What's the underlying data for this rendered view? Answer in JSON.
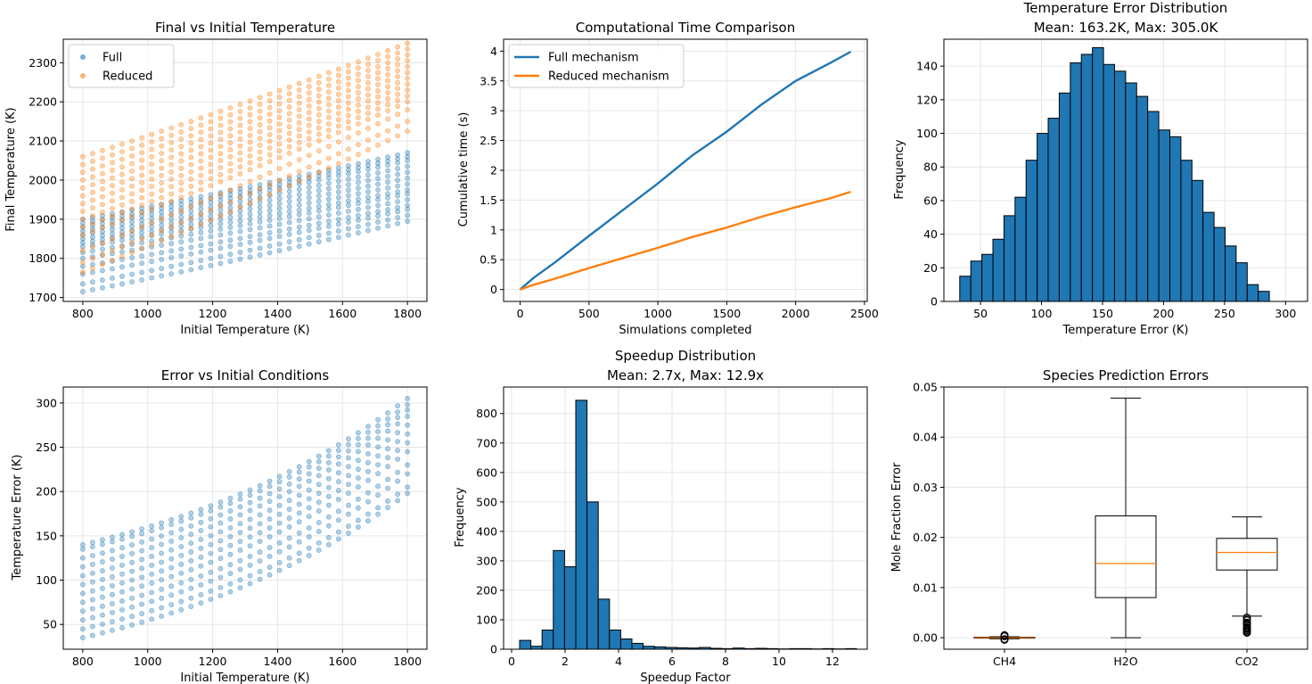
{
  "colors": {
    "blue": "#1f77b4",
    "orange": "#ff7f0e",
    "median": "#ff7f0e",
    "grid": "#e6e6e6"
  },
  "chart_data": [
    {
      "id": "c1",
      "type": "scatter",
      "title": "Final vs Initial Temperature",
      "xlabel": "Initial Temperature (K)",
      "ylabel": "Final Temperature (K)",
      "xlim": [
        740,
        1860
      ],
      "ylim": [
        1690,
        2360
      ],
      "xticks": [
        800,
        1000,
        1200,
        1400,
        1600,
        1800
      ],
      "yticks": [
        1700,
        1800,
        1900,
        2000,
        2100,
        2200,
        2300
      ],
      "legend": "top-left",
      "grid": true,
      "x_range": [
        800,
        1800
      ],
      "series": [
        {
          "name": "Full",
          "color": "#1f77b4",
          "lines_y_at_800": [
            1715,
            1735,
            1760,
            1780,
            1800,
            1815,
            1830,
            1840,
            1850,
            1860,
            1870,
            1880,
            1890,
            1900
          ],
          "lines_y_at_1800": [
            1895,
            1910,
            1925,
            1935,
            1950,
            1965,
            1975,
            1990,
            2005,
            2020,
            2035,
            2050,
            2060,
            2070
          ]
        },
        {
          "name": "Reduced",
          "color": "#ff7f0e",
          "lines_y_at_800": [
            1765,
            1790,
            1820,
            1860,
            1880,
            1900,
            1920,
            1940,
            1960,
            1980,
            2000,
            2020,
            2040,
            2060
          ],
          "lines_y_at_1800": [
            2125,
            2150,
            2180,
            2200,
            2215,
            2230,
            2245,
            2260,
            2275,
            2290,
            2305,
            2320,
            2335,
            2350
          ]
        }
      ]
    },
    {
      "id": "c2",
      "type": "line",
      "title": "Computational Time Comparison",
      "xlabel": "Simulations completed",
      "ylabel": "Cumulative time (s)",
      "xlim": [
        -120,
        2520
      ],
      "ylim": [
        -0.2,
        4.2
      ],
      "xticks": [
        0,
        500,
        1000,
        1500,
        2000,
        2500
      ],
      "yticks": [
        0.0,
        0.5,
        1.0,
        1.5,
        2.0,
        2.5,
        3.0,
        3.5,
        4.0
      ],
      "legend": "top-left",
      "grid": true,
      "series": [
        {
          "name": "Full mechanism",
          "color": "#1f77b4",
          "x": [
            0,
            100,
            250,
            500,
            750,
            1000,
            1250,
            1500,
            1750,
            2000,
            2250,
            2400
          ],
          "y": [
            0.0,
            0.2,
            0.45,
            0.9,
            1.34,
            1.78,
            2.25,
            2.65,
            3.1,
            3.5,
            3.8,
            3.99
          ]
        },
        {
          "name": "Reduced mechanism",
          "color": "#ff7f0e",
          "x": [
            0,
            100,
            250,
            500,
            750,
            1000,
            1250,
            1500,
            1750,
            2000,
            2250,
            2400
          ],
          "y": [
            0.0,
            0.08,
            0.18,
            0.36,
            0.53,
            0.7,
            0.88,
            1.04,
            1.22,
            1.38,
            1.53,
            1.64
          ]
        }
      ]
    },
    {
      "id": "c3",
      "type": "bar",
      "title": "Temperature Error Distribution",
      "subtitle": "Mean: 163.2K, Max: 305.0K",
      "xlabel": "Temperature Error (K)",
      "ylabel": "Frequency",
      "xlim": [
        20,
        318
      ],
      "ylim": [
        0,
        156
      ],
      "xticks": [
        50,
        100,
        150,
        200,
        250,
        300
      ],
      "yticks": [
        0,
        20,
        40,
        60,
        80,
        100,
        120,
        140
      ],
      "grid": true,
      "bin_start": 33.0,
      "bin_width": 9.06,
      "values": [
        15,
        24,
        28,
        37,
        51,
        62,
        84,
        100,
        109,
        124,
        142,
        147,
        151,
        141,
        137,
        130,
        122,
        113,
        102,
        98,
        84,
        72,
        53,
        44,
        33,
        23,
        10,
        6
      ]
    },
    {
      "id": "c4",
      "type": "scatter",
      "title": "Error vs Initial Conditions",
      "xlabel": "Initial Temperature (K)",
      "ylabel": "Temperature Error (K)",
      "xlim": [
        740,
        1860
      ],
      "ylim": [
        22,
        318
      ],
      "xticks": [
        800,
        1000,
        1200,
        1400,
        1600,
        1800
      ],
      "yticks": [
        50,
        100,
        150,
        200,
        250,
        300
      ],
      "grid": true,
      "x_range": [
        800,
        1800
      ],
      "series": [
        {
          "name": "",
          "color": "#1f77b4",
          "lines_y_at_800": [
            35,
            45,
            55,
            65,
            75,
            85,
            95,
            105,
            115,
            125,
            135,
            140
          ],
          "lines_y_at_1800": [
            198,
            205,
            220,
            230,
            245,
            255,
            265,
            275,
            285,
            292,
            298,
            305
          ]
        }
      ]
    },
    {
      "id": "c5",
      "type": "bar",
      "title": "Speedup Distribution",
      "subtitle": "Mean: 2.7x, Max: 12.9x",
      "xlabel": "Speedup Factor",
      "ylabel": "Frequency",
      "xlim": [
        -0.3,
        13.3
      ],
      "ylim": [
        0,
        890
      ],
      "xticks": [
        0,
        2,
        4,
        6,
        8,
        10,
        12
      ],
      "yticks": [
        0,
        100,
        200,
        300,
        400,
        500,
        600,
        700,
        800
      ],
      "grid": true,
      "bin_start": 0.3,
      "bin_width": 0.42,
      "values": [
        30,
        10,
        65,
        335,
        280,
        845,
        500,
        170,
        65,
        35,
        20,
        10,
        8,
        6,
        5,
        4,
        6,
        3,
        2,
        4,
        2,
        3,
        2,
        1,
        2,
        2,
        1,
        2,
        1,
        2
      ]
    },
    {
      "id": "c6",
      "type": "box",
      "title": "Species Prediction Errors",
      "xlabel": "",
      "ylabel": "Mole Fraction Error",
      "ylim": [
        -0.0023,
        0.05
      ],
      "yticks": [
        0.0,
        0.01,
        0.02,
        0.03,
        0.04,
        0.05
      ],
      "ytick_labels": [
        "0.00",
        "0.01",
        "0.02",
        "0.03",
        "0.04",
        "0.05"
      ],
      "grid": true,
      "categories": [
        "CH4",
        "H2O",
        "CO2"
      ],
      "boxes": [
        {
          "min": -0.0002,
          "q1": -0.0001,
          "median": 0.0,
          "q3": 0.0001,
          "max": 0.0002,
          "outliers": [
            -0.0004,
            -0.0003,
            0.0003,
            0.0004,
            0.0005
          ]
        },
        {
          "min": 0.0,
          "q1": 0.008,
          "median": 0.0148,
          "q3": 0.0243,
          "max": 0.0478,
          "outliers": []
        },
        {
          "min": 0.0043,
          "q1": 0.0135,
          "median": 0.017,
          "q3": 0.0198,
          "max": 0.0241,
          "outliers": [
            0.001,
            0.0015,
            0.002,
            0.0025,
            0.003,
            0.0035,
            0.004,
            0.0012,
            0.0018,
            0.0028
          ]
        }
      ]
    }
  ]
}
